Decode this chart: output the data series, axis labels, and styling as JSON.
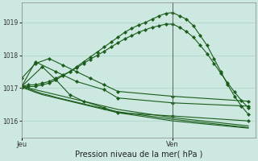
{
  "background_color": "#cce8e0",
  "grid_color": "#aad4c8",
  "line_color": "#1a5c1a",
  "title": "Pression niveau de la mer( hPa )",
  "xlabel_jeu": "Jeu",
  "xlabel_ven": "Ven",
  "ylim": [
    1015.5,
    1019.6
  ],
  "yticks": [
    1016,
    1017,
    1018,
    1019
  ],
  "xlim": [
    0,
    34
  ],
  "ven_x": 22,
  "series": [
    {
      "x": [
        0,
        1,
        2,
        3,
        4,
        5,
        6,
        7,
        8,
        9,
        10,
        11,
        12,
        13,
        14,
        15,
        16,
        17,
        18,
        19,
        20,
        21,
        22,
        23,
        24,
        25,
        26,
        27,
        28,
        29,
        30,
        31,
        32,
        33
      ],
      "y": [
        1017.05,
        1017.1,
        1017.1,
        1017.15,
        1017.2,
        1017.3,
        1017.4,
        1017.5,
        1017.65,
        1017.8,
        1017.95,
        1018.1,
        1018.25,
        1018.4,
        1018.55,
        1018.7,
        1018.82,
        1018.92,
        1019.0,
        1019.1,
        1019.2,
        1019.28,
        1019.3,
        1019.2,
        1019.1,
        1018.9,
        1018.6,
        1018.3,
        1017.9,
        1017.5,
        1017.1,
        1016.75,
        1016.45,
        1016.2
      ],
      "marker": true
    },
    {
      "x": [
        0,
        1,
        2,
        3,
        4,
        5,
        6,
        7,
        8,
        9,
        10,
        11,
        12,
        13,
        14,
        15,
        16,
        17,
        18,
        19,
        20,
        21,
        22,
        23,
        24,
        25,
        26,
        27,
        28,
        29,
        30,
        31,
        32,
        33
      ],
      "y": [
        1017.0,
        1017.05,
        1017.05,
        1017.1,
        1017.15,
        1017.25,
        1017.38,
        1017.5,
        1017.62,
        1017.75,
        1017.88,
        1018.0,
        1018.12,
        1018.25,
        1018.38,
        1018.5,
        1018.6,
        1018.7,
        1018.78,
        1018.85,
        1018.9,
        1018.95,
        1018.95,
        1018.85,
        1018.72,
        1018.55,
        1018.3,
        1018.05,
        1017.75,
        1017.45,
        1017.15,
        1016.88,
        1016.62,
        1016.4
      ],
      "marker": true
    },
    {
      "x": [
        0,
        2,
        4,
        6,
        8,
        10,
        12,
        14,
        22,
        33
      ],
      "y": [
        1017.3,
        1017.75,
        1017.9,
        1017.7,
        1017.5,
        1017.3,
        1017.1,
        1016.9,
        1016.75,
        1016.6
      ],
      "marker": true
    },
    {
      "x": [
        0,
        3,
        5,
        7,
        9,
        12,
        14,
        22,
        33
      ],
      "y": [
        1017.05,
        1017.65,
        1017.25,
        1016.8,
        1016.6,
        1016.4,
        1016.25,
        1016.15,
        1016.0
      ],
      "marker": true
    },
    {
      "x": [
        0,
        2,
        5,
        8,
        12,
        14,
        22,
        33
      ],
      "y": [
        1017.05,
        1017.8,
        1017.5,
        1017.2,
        1016.95,
        1016.7,
        1016.55,
        1016.45
      ],
      "marker": true
    },
    {
      "x": [
        0,
        1,
        2,
        3,
        4,
        5,
        6,
        7,
        8,
        9,
        10,
        11,
        12,
        13,
        14,
        22,
        33
      ],
      "y": [
        1017.1,
        1017.0,
        1016.95,
        1016.9,
        1016.85,
        1016.8,
        1016.75,
        1016.7,
        1016.65,
        1016.6,
        1016.55,
        1016.5,
        1016.45,
        1016.4,
        1016.35,
        1016.1,
        1015.85
      ],
      "marker": false
    },
    {
      "x": [
        0,
        1,
        2,
        3,
        4,
        5,
        6,
        7,
        8,
        9,
        10,
        11,
        12,
        13,
        14,
        22,
        33
      ],
      "y": [
        1017.05,
        1016.98,
        1016.9,
        1016.83,
        1016.78,
        1016.72,
        1016.67,
        1016.62,
        1016.57,
        1016.52,
        1016.47,
        1016.42,
        1016.38,
        1016.33,
        1016.28,
        1016.05,
        1015.8
      ],
      "marker": false
    },
    {
      "x": [
        0,
        1,
        2,
        3,
        4,
        5,
        6,
        7,
        8,
        9,
        10,
        11,
        12,
        13,
        14,
        22,
        33
      ],
      "y": [
        1017.02,
        1016.95,
        1016.87,
        1016.8,
        1016.75,
        1016.7,
        1016.65,
        1016.6,
        1016.55,
        1016.5,
        1016.45,
        1016.4,
        1016.35,
        1016.3,
        1016.25,
        1016.0,
        1015.78
      ],
      "marker": false
    }
  ]
}
